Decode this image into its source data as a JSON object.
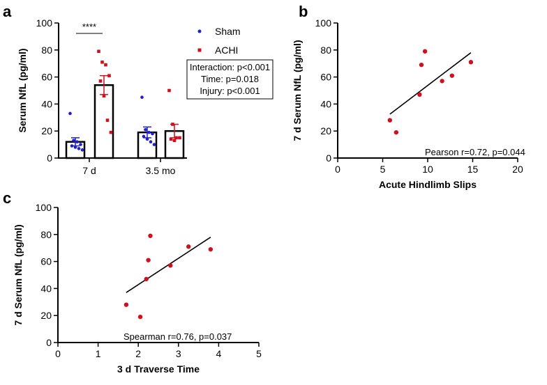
{
  "chart_data": [
    {
      "panel": "a",
      "type": "bar",
      "ylabel": "Serum NfL (pg/ml)",
      "xlabel": "",
      "ylim": [
        0,
        100
      ],
      "yticks": [
        0,
        20,
        40,
        60,
        80,
        100
      ],
      "categories": [
        "7 d",
        "3.5 mo"
      ],
      "series": [
        {
          "name": "Sham",
          "marker": "circle",
          "color": "#1f1fcc",
          "means": [
            12,
            19
          ],
          "sem": [
            3,
            4
          ],
          "points": [
            [
              33,
              13,
              12,
              10,
              9,
              8,
              7,
              6
            ],
            [
              45,
              21,
              19,
              18,
              16,
              14,
              12,
              10
            ]
          ]
        },
        {
          "name": "ACHI",
          "marker": "square",
          "color": "#d0101e",
          "means": [
            54,
            20
          ],
          "sem": [
            7,
            5
          ],
          "points": [
            [
              79,
              71,
              69,
              61,
              57,
              46,
              28,
              19
            ],
            [
              50,
              25,
              15,
              15,
              14,
              13
            ]
          ]
        }
      ],
      "significance": "****",
      "stats": [
        "Interaction: p<0.001",
        "Time: p=0.018",
        "Injury: p<0.001"
      ]
    },
    {
      "panel": "b",
      "type": "scatter",
      "xlabel": "Acute Hindlimb Slips",
      "ylabel": "7 d Serum NfL (pg/ml)",
      "xlim": [
        0,
        20
      ],
      "ylim": [
        0,
        100
      ],
      "xticks": [
        0,
        5,
        10,
        15,
        20
      ],
      "yticks": [
        0,
        20,
        40,
        60,
        80,
        100
      ],
      "points": [
        [
          5.8,
          28
        ],
        [
          6.5,
          19
        ],
        [
          9.1,
          47
        ],
        [
          9.3,
          69
        ],
        [
          9.7,
          79
        ],
        [
          11.6,
          57
        ],
        [
          12.7,
          61
        ],
        [
          14.8,
          71
        ]
      ],
      "fit": [
        [
          5.8,
          32.5
        ],
        [
          14.8,
          78
        ]
      ],
      "color": "#d0101e",
      "annotation": "Pearson r=0.72, p=0.044"
    },
    {
      "panel": "c",
      "type": "scatter",
      "xlabel": "3 d Traverse Time",
      "ylabel": "7 d Serum NfL (pg/ml)",
      "xlim": [
        0,
        5
      ],
      "ylim": [
        0,
        100
      ],
      "xticks": [
        0,
        1,
        2,
        3,
        4,
        5
      ],
      "yticks": [
        0,
        20,
        40,
        60,
        80,
        100
      ],
      "points": [
        [
          1.7,
          28
        ],
        [
          2.05,
          19
        ],
        [
          2.2,
          47
        ],
        [
          2.25,
          61
        ],
        [
          2.3,
          79
        ],
        [
          2.8,
          57
        ],
        [
          3.25,
          71
        ],
        [
          3.8,
          69
        ]
      ],
      "fit": [
        [
          1.7,
          37
        ],
        [
          3.8,
          78
        ]
      ],
      "color": "#d0101e",
      "annotation": "Spearman r=0.76, p=0.037"
    }
  ]
}
